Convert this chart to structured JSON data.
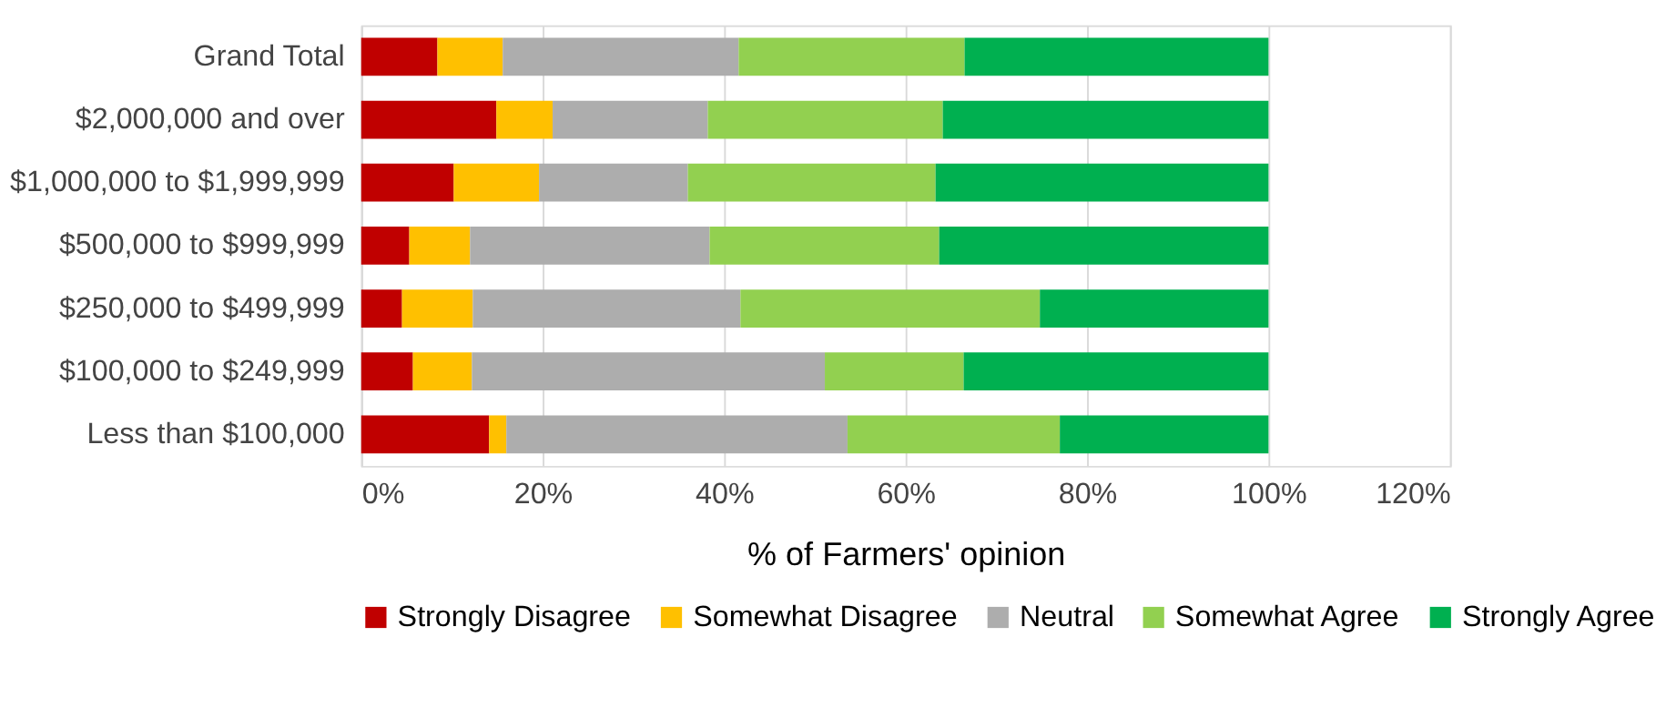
{
  "chart_data": {
    "type": "bar",
    "orientation": "horizontal",
    "stacked": true,
    "xlabel": "% of Farmers' opinion",
    "categories": [
      "Grand Total",
      "$2,000,000 and over",
      "$1,000,000 to $1,999,999",
      "$500,000 to $999,999",
      "$250,000 to $499,999",
      "$100,000 to $249,999",
      "Less than $100,000"
    ],
    "series": [
      {
        "name": "Strongly Disagree",
        "color": "#c00000",
        "values": [
          8.4,
          14.9,
          10.2,
          5.3,
          4.5,
          5.7,
          14.1
        ]
      },
      {
        "name": "Somewhat Disagree",
        "color": "#ffc000",
        "values": [
          7.2,
          6.2,
          9.4,
          6.7,
          7.8,
          6.5,
          1.9
        ]
      },
      {
        "name": "Neutral",
        "color": "#adadad",
        "values": [
          26.0,
          17.1,
          16.4,
          26.4,
          29.5,
          38.9,
          37.6
        ]
      },
      {
        "name": "Somewhat Agree",
        "color": "#92d050",
        "values": [
          24.9,
          25.9,
          27.3,
          25.3,
          33.0,
          15.3,
          23.4
        ]
      },
      {
        "name": "Strongly Agree",
        "color": "#00b050",
        "values": [
          33.5,
          35.9,
          36.7,
          36.3,
          25.2,
          33.6,
          23.0
        ]
      }
    ],
    "xlim": [
      0,
      120
    ],
    "xticks": [
      {
        "value": 0,
        "label": "0%"
      },
      {
        "value": 20,
        "label": "20%"
      },
      {
        "value": 40,
        "label": "40%"
      },
      {
        "value": 60,
        "label": "60%"
      },
      {
        "value": 80,
        "label": "80%"
      },
      {
        "value": 100,
        "label": "100%"
      },
      {
        "value": 120,
        "label": "120%"
      }
    ],
    "grid": "x",
    "legend": "bottom"
  }
}
